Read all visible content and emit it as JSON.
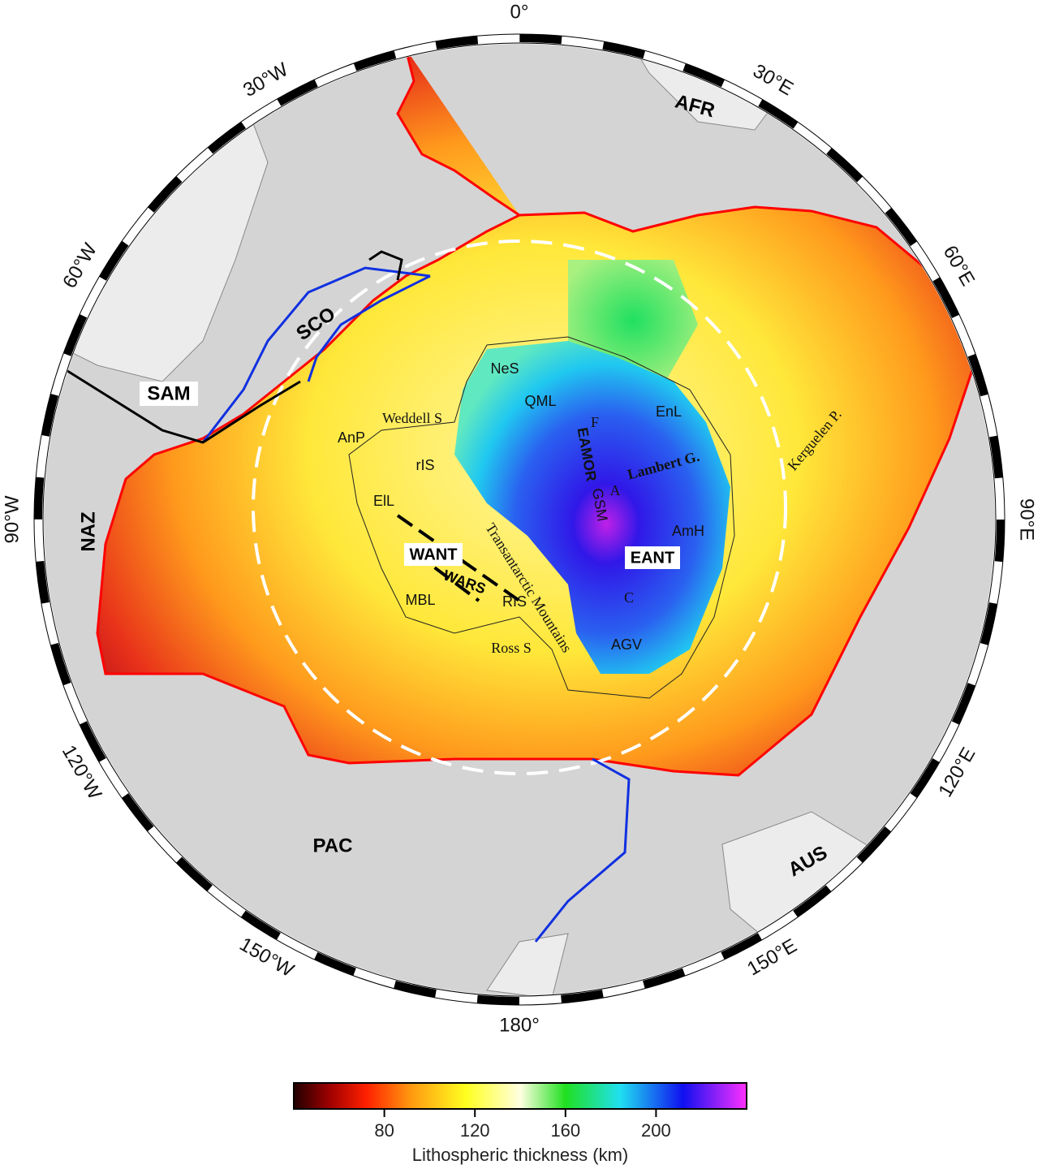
{
  "map": {
    "graticule_labels": [
      "0°",
      "30°E",
      "60°E",
      "90°E",
      "120°E",
      "150°E",
      "180°",
      "150°W",
      "120°W",
      "90°W",
      "60°W",
      "30°W"
    ],
    "plates": [
      "SAM",
      "SCO",
      "AFR",
      "NAZ",
      "PAC",
      "AUS",
      "WANT",
      "EANT",
      "WARS"
    ],
    "regions": [
      "NeS",
      "QML",
      "EnL",
      "F",
      "EAMOR",
      "GSM",
      "A",
      "Lambert G.",
      "Kerguelen P.",
      "AmH",
      "C",
      "AGV",
      "Ross S",
      "RIS",
      "MBL",
      "Transantarctic Mountains",
      "ElL",
      "rIS",
      "AnP",
      "Weddell S"
    ]
  },
  "colorbar": {
    "label": "Lithospheric thickness (km)",
    "range": [
      40,
      240
    ],
    "ticks": [
      80,
      120,
      160,
      200
    ]
  }
}
